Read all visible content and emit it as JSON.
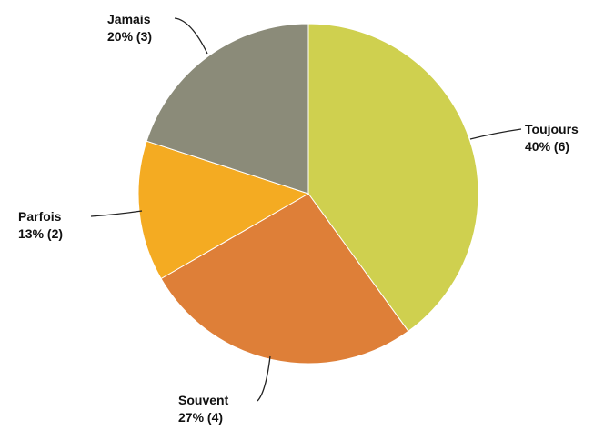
{
  "chart_data": {
    "type": "pie",
    "slices": [
      {
        "label": "Toujours",
        "percent_label": "40% (6)",
        "value": 6,
        "color": "#cfd04f"
      },
      {
        "label": "Souvent",
        "percent_label": "27% (4)",
        "value": 4,
        "color": "#de7f38"
      },
      {
        "label": "Parfois",
        "percent_label": "13% (2)",
        "value": 2,
        "color": "#f4ab22"
      },
      {
        "label": "Jamais",
        "percent_label": "20% (3)",
        "value": 3,
        "color": "#8b8b79"
      }
    ],
    "start_angle_deg": 0,
    "direction": "clockwise"
  }
}
